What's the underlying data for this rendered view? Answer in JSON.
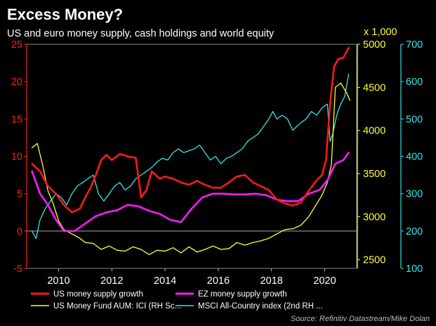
{
  "chart_data": {
    "type": "line",
    "title": "Excess Money?",
    "subtitle": "US and euro money supply, cash holdings and world equity",
    "source": "Source: Refinitiv Datastream/Mike Dolan",
    "x_range": [
      2008.8,
      2021.2
    ],
    "x_ticks": [
      "2010",
      "2012",
      "2014",
      "2016",
      "2018",
      "2020"
    ],
    "y_left": {
      "range": [
        -5,
        25
      ],
      "ticks": [
        "25",
        "20",
        "15",
        "10",
        "5",
        "0",
        "-5"
      ],
      "color": "#ff1a1a"
    },
    "y_mid": {
      "range": [
        2400,
        5000
      ],
      "ticks": [
        "5000",
        "4500",
        "4000",
        "3500",
        "3000",
        "2500"
      ],
      "unit_label": "x 1,000",
      "color": "#ffff33"
    },
    "y_right": {
      "range": [
        100,
        700
      ],
      "ticks": [
        "700",
        "600",
        "500",
        "400",
        "300",
        "200",
        "100"
      ],
      "color": "#33e6e6"
    },
    "series": [
      {
        "name": "US money supply growth",
        "axis": "left",
        "color": "#ff1a1a",
        "x": [
          2009.0,
          2009.3,
          2009.6,
          2009.9,
          2010.2,
          2010.5,
          2010.8,
          2011.0,
          2011.2,
          2011.4,
          2011.6,
          2011.8,
          2012.0,
          2012.3,
          2012.6,
          2012.9,
          2013.1,
          2013.3,
          2013.5,
          2013.8,
          2014.0,
          2014.3,
          2014.6,
          2014.9,
          2015.2,
          2015.5,
          2015.8,
          2016.1,
          2016.4,
          2016.7,
          2017.0,
          2017.3,
          2017.6,
          2017.9,
          2018.2,
          2018.5,
          2018.8,
          2019.1,
          2019.4,
          2019.7,
          2019.9,
          2020.05,
          2020.2,
          2020.35,
          2020.5,
          2020.7,
          2020.9
        ],
        "values": [
          9,
          8,
          6,
          5,
          3.5,
          2.5,
          3,
          4.5,
          5.8,
          7.5,
          9.5,
          10.2,
          9.5,
          10.3,
          10,
          9.8,
          4.5,
          5.5,
          8,
          7,
          7.3,
          7,
          6.5,
          6.2,
          6.7,
          6.2,
          5.8,
          5.8,
          6.5,
          7.3,
          7.5,
          6.5,
          6,
          5.5,
          4.2,
          3.7,
          3.4,
          3.8,
          5.4,
          6.8,
          7.5,
          9.5,
          17,
          22,
          23,
          23.2,
          24.5
        ]
      },
      {
        "name": "EZ money supply growth",
        "axis": "left",
        "color": "#ff1aff",
        "x": [
          2009.0,
          2009.3,
          2009.6,
          2009.9,
          2010.2,
          2010.6,
          2011.0,
          2011.4,
          2011.8,
          2012.2,
          2012.6,
          2013.0,
          2013.4,
          2013.8,
          2014.2,
          2014.6,
          2015.0,
          2015.4,
          2015.8,
          2016.2,
          2016.6,
          2017.0,
          2017.4,
          2017.8,
          2018.2,
          2018.6,
          2019.0,
          2019.4,
          2019.8,
          2020.1,
          2020.4,
          2020.7,
          2020.9
        ],
        "values": [
          8,
          5,
          3.5,
          1.5,
          0,
          0,
          1,
          2,
          2.5,
          2.8,
          3.5,
          3.3,
          2.7,
          2.3,
          1.5,
          1.2,
          3,
          4.5,
          5,
          5,
          4.9,
          4.9,
          5,
          4.8,
          4.2,
          4,
          4,
          5,
          5.5,
          6.8,
          9,
          9.5,
          10.5
        ]
      },
      {
        "name": "US Money Fund AUM: ICI (RH Sc...",
        "axis": "mid",
        "color": "#ffff33",
        "x": [
          2009.0,
          2009.2,
          2009.4,
          2009.6,
          2009.8,
          2010.0,
          2010.2,
          2010.5,
          2010.8,
          2011.0,
          2011.3,
          2011.6,
          2011.9,
          2012.2,
          2012.5,
          2012.8,
          2013.1,
          2013.4,
          2013.7,
          2014.0,
          2014.3,
          2014.6,
          2014.9,
          2015.2,
          2015.5,
          2015.8,
          2016.1,
          2016.4,
          2016.7,
          2017.0,
          2017.3,
          2017.6,
          2017.9,
          2018.2,
          2018.5,
          2018.8,
          2019.1,
          2019.4,
          2019.7,
          2019.9,
          2020.1,
          2020.25,
          2020.4,
          2020.6,
          2020.8,
          2020.95
        ],
        "values": [
          3800,
          3850,
          3600,
          3300,
          3150,
          2950,
          2850,
          2800,
          2750,
          2700,
          2690,
          2620,
          2660,
          2610,
          2600,
          2650,
          2620,
          2560,
          2610,
          2600,
          2640,
          2580,
          2650,
          2590,
          2620,
          2660,
          2620,
          2630,
          2700,
          2670,
          2700,
          2720,
          2750,
          2800,
          2850,
          2860,
          2900,
          3000,
          3150,
          3250,
          3400,
          3600,
          4500,
          4550,
          4450,
          4350
        ]
      },
      {
        "name": "MSCI All-Country index (2nd RH ...",
        "axis": "right",
        "color": "#33e6e6",
        "x": [
          2009.0,
          2009.15,
          2009.3,
          2009.5,
          2009.7,
          2009.9,
          2010.1,
          2010.3,
          2010.5,
          2010.7,
          2010.9,
          2011.1,
          2011.3,
          2011.5,
          2011.7,
          2011.9,
          2012.1,
          2012.3,
          2012.5,
          2012.7,
          2012.9,
          2013.1,
          2013.3,
          2013.5,
          2013.7,
          2013.9,
          2014.1,
          2014.3,
          2014.5,
          2014.7,
          2014.9,
          2015.1,
          2015.3,
          2015.5,
          2015.7,
          2015.9,
          2016.1,
          2016.3,
          2016.5,
          2016.7,
          2016.9,
          2017.1,
          2017.3,
          2017.5,
          2017.7,
          2017.9,
          2018.05,
          2018.2,
          2018.4,
          2018.6,
          2018.8,
          2018.95,
          2019.1,
          2019.3,
          2019.5,
          2019.7,
          2019.9,
          2020.1,
          2020.2,
          2020.3,
          2020.45,
          2020.6,
          2020.75,
          2020.9
        ],
        "values": [
          200,
          180,
          230,
          260,
          280,
          300,
          290,
          270,
          300,
          320,
          330,
          340,
          350,
          300,
          280,
          300,
          320,
          330,
          310,
          320,
          340,
          350,
          360,
          370,
          385,
          395,
          390,
          410,
          420,
          410,
          415,
          420,
          430,
          410,
          390,
          400,
          380,
          395,
          400,
          410,
          420,
          440,
          450,
          460,
          480,
          500,
          520,
          500,
          510,
          500,
          470,
          480,
          490,
          500,
          520,
          510,
          530,
          540,
          440,
          460,
          510,
          540,
          560,
          620
        ]
      }
    ]
  }
}
